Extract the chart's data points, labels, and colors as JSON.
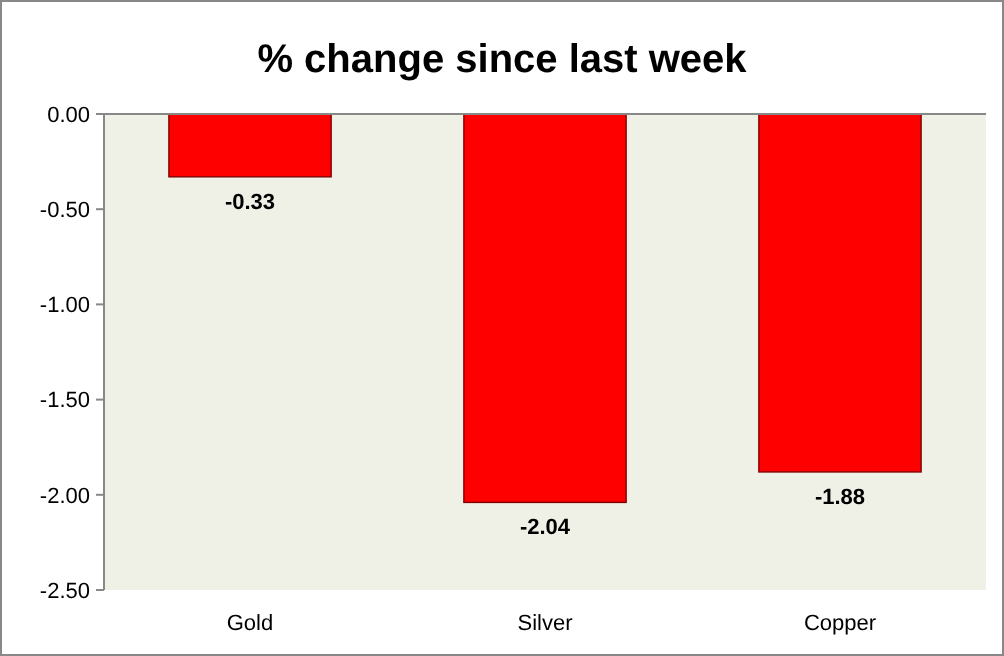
{
  "chart_data": {
    "type": "bar",
    "title": "% change since last week",
    "categories": [
      "Gold",
      "Silver",
      "Copper"
    ],
    "values": [
      -0.33,
      -2.04,
      -1.88
    ],
    "color": "#ff0000",
    "data_labels": true,
    "ylim": [
      -2.5,
      0
    ],
    "yticks": [
      {
        "value": 0,
        "label": "0.00"
      },
      {
        "value": -0.5,
        "label": "-0.50"
      },
      {
        "value": -1,
        "label": "-1.00"
      },
      {
        "value": -1.5,
        "label": "-1.50"
      },
      {
        "value": -2,
        "label": "-2.00"
      },
      {
        "value": -2.5,
        "label": "-2.50"
      }
    ],
    "grid": false
  }
}
